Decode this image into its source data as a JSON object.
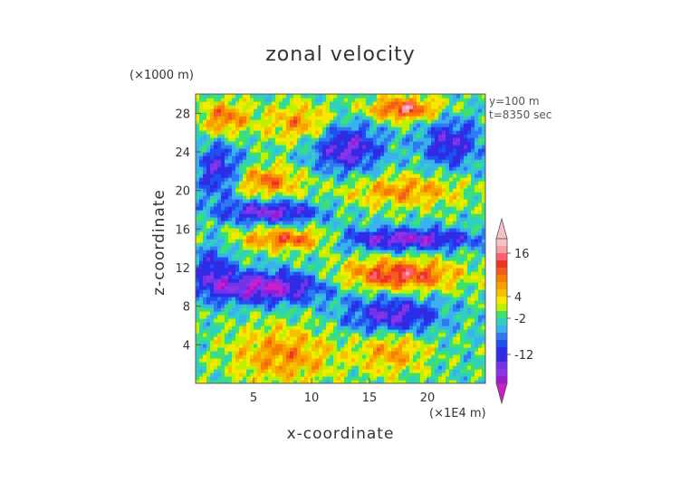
{
  "chart_data": {
    "type": "heatmap",
    "title": "zonal velocity",
    "xlabel": "x-coordinate",
    "ylabel": "z-coordinate",
    "x_unit": "(×1E4 m)",
    "y_unit": "(×1000 m)",
    "annotations": [
      "y=100 m",
      "t=8350 sec"
    ],
    "xlim": [
      0,
      25
    ],
    "ylim": [
      0,
      30
    ],
    "x_ticks": [
      5,
      10,
      15,
      20
    ],
    "y_ticks": [
      4,
      8,
      12,
      16,
      20,
      24,
      28
    ],
    "colorbar": {
      "labels": [
        "16",
        "4",
        "-2",
        "-12"
      ],
      "label_values": [
        16,
        4,
        -2,
        -12
      ],
      "vmin": -20,
      "vmax": 20,
      "levels": [
        -20,
        -18,
        -16,
        -14,
        -12,
        -10,
        -8,
        -6,
        -4,
        -2,
        0,
        2,
        4,
        6,
        8,
        10,
        12,
        14,
        16,
        18,
        20
      ],
      "colors": [
        "#c81fc8",
        "#9a18d8",
        "#8a35ea",
        "#6f35ea",
        "#3a27e0",
        "#2a2ee8",
        "#1e4ff0",
        "#2f7af0",
        "#3bb0ee",
        "#2fd0c0",
        "#40e070",
        "#c0f000",
        "#f7e800",
        "#f5c000",
        "#f7a000",
        "#f77e00",
        "#f55a20",
        "#ee3525",
        "#ff6070",
        "#f4a0a8",
        "#f9c0c8"
      ]
    },
    "field_description": "2D contour field; bands of negative (blue/purple) and positive (orange/red/pink) zonal velocity; strong positive core near x=15-20, z=10-13 and x=5-10, z=14-16; negative layers near z=17-19 and z=10-12",
    "grid": false
  }
}
